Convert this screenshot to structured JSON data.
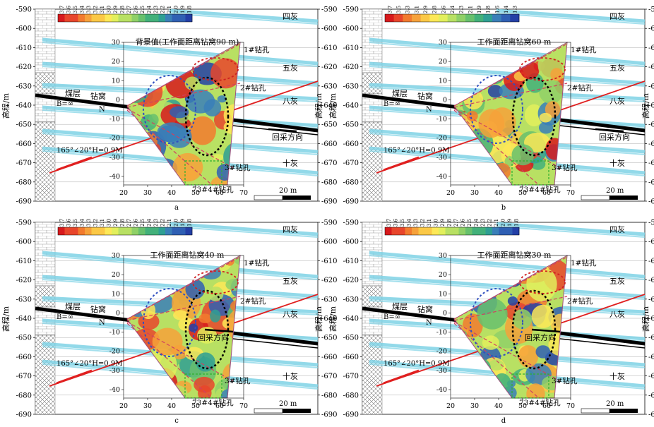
{
  "colors": {
    "palette": [
      "#d7191c",
      "#e8452b",
      "#f27a2e",
      "#f6a13a",
      "#fbc846",
      "#fde857",
      "#e2ef5c",
      "#b8e063",
      "#8fd067",
      "#67c06d",
      "#42b07a",
      "#2f9f93",
      "#3a7fb8",
      "#2f5fb3",
      "#233fa6"
    ],
    "stratum": "#7fd3e6",
    "coal": "#000000",
    "fault": "#e02020",
    "borehole": "#d04060",
    "ellipse_blue": "#3050c0",
    "ellipse_black": "#000000",
    "ellipse_red": "#d02020",
    "rect_green": "#30b030"
  },
  "legend_values": [
    "3.7",
    "3.6",
    "3.5",
    "3.4",
    "3.3",
    "3.2",
    "3.1",
    "3.0",
    "2.9",
    "2.8",
    "2.7",
    "2.6",
    "2.5",
    "2.4",
    "2.3",
    "2.2",
    "2.1",
    "2.0",
    "1.9",
    "1.8"
  ],
  "legend_values_b": [
    "3.7",
    "3.5",
    "3.3",
    "3.1",
    "2.9",
    "2.8",
    "2.6",
    "2.4",
    "2.3",
    "2.1",
    "1.9",
    "1.8",
    "1.6",
    "1.4",
    "1.3"
  ],
  "labels": {
    "y_axis": "高程/m",
    "si_hui": "四灰",
    "wu_hui": "五灰",
    "ba_hui": "八灰",
    "shi_hui": "十灰",
    "coal_seam": "煤层",
    "drill_nest": "钻窝",
    "north": "N",
    "b_inf": "B=∞",
    "fault": "165°∠20°H=0.9M",
    "hole1": "1#钻孔",
    "hole2": "2#钻孔",
    "hole3": "3#钻孔",
    "hole4": "73#4#钻孔",
    "mining_dir": "回采方向",
    "scale": "20 m"
  },
  "panels": [
    {
      "id": "a",
      "title": "背景值(工作面距离钻窝90 m)"
    },
    {
      "id": "b",
      "title": "工作面距离钻窝60 m"
    },
    {
      "id": "c",
      "title": "工作面距离钻窝40 m"
    },
    {
      "id": "d",
      "title": "工作面距离钻窝30 m"
    }
  ],
  "chart_data": [
    {
      "type": "heatmap",
      "panel": "a",
      "title": "背景值(工作面距离钻窝90 m)",
      "ylabel": "高程/m",
      "outer_y_ticks": [
        -590,
        -600,
        -610,
        -620,
        -630,
        -640,
        -650,
        -660,
        -670,
        -680,
        -690
      ],
      "inner_x_ticks": [
        20,
        30,
        40,
        50,
        60,
        70
      ],
      "inner_y_ticks": [
        30,
        20,
        10,
        0,
        -10,
        -20,
        -30,
        -40
      ],
      "colorbar": {
        "min": 1.8,
        "max": 3.7
      }
    },
    {
      "type": "heatmap",
      "panel": "b",
      "title": "工作面距离钻窝60 m",
      "ylabel": "高程/m",
      "outer_y_ticks": [
        -590,
        -600,
        -610,
        -620,
        -630,
        -640,
        -650,
        -660,
        -670,
        -680,
        -690
      ],
      "inner_x_ticks": [
        20,
        30,
        40,
        50,
        60,
        70
      ],
      "inner_y_ticks": [
        30,
        20,
        10,
        0,
        -10,
        -20,
        -30,
        -40
      ],
      "colorbar": {
        "min": 1.3,
        "max": 3.7
      }
    },
    {
      "type": "heatmap",
      "panel": "c",
      "title": "工作面距离钻窝40 m",
      "ylabel": "高程/m",
      "outer_y_ticks": [
        -590,
        -600,
        -610,
        -620,
        -630,
        -640,
        -650,
        -660,
        -670,
        -680,
        -690
      ],
      "inner_x_ticks": [
        20,
        30,
        40,
        50,
        60,
        70
      ],
      "inner_y_ticks": [
        30,
        20,
        10,
        0,
        -10,
        -20,
        -30,
        -40
      ],
      "colorbar": {
        "min": 1.8,
        "max": 3.7
      }
    },
    {
      "type": "heatmap",
      "panel": "d",
      "title": "工作面距离钻窝30 m",
      "ylabel": "高程/m",
      "outer_y_ticks": [
        -590,
        -600,
        -610,
        -620,
        -630,
        -640,
        -650,
        -660,
        -670,
        -680,
        -690
      ],
      "inner_x_ticks": [
        20,
        30,
        40,
        50,
        60,
        70
      ],
      "inner_y_ticks": [
        30,
        20,
        10,
        0,
        -10,
        -20,
        -30,
        -40
      ],
      "colorbar": {
        "min": 1.8,
        "max": 3.7
      }
    }
  ]
}
